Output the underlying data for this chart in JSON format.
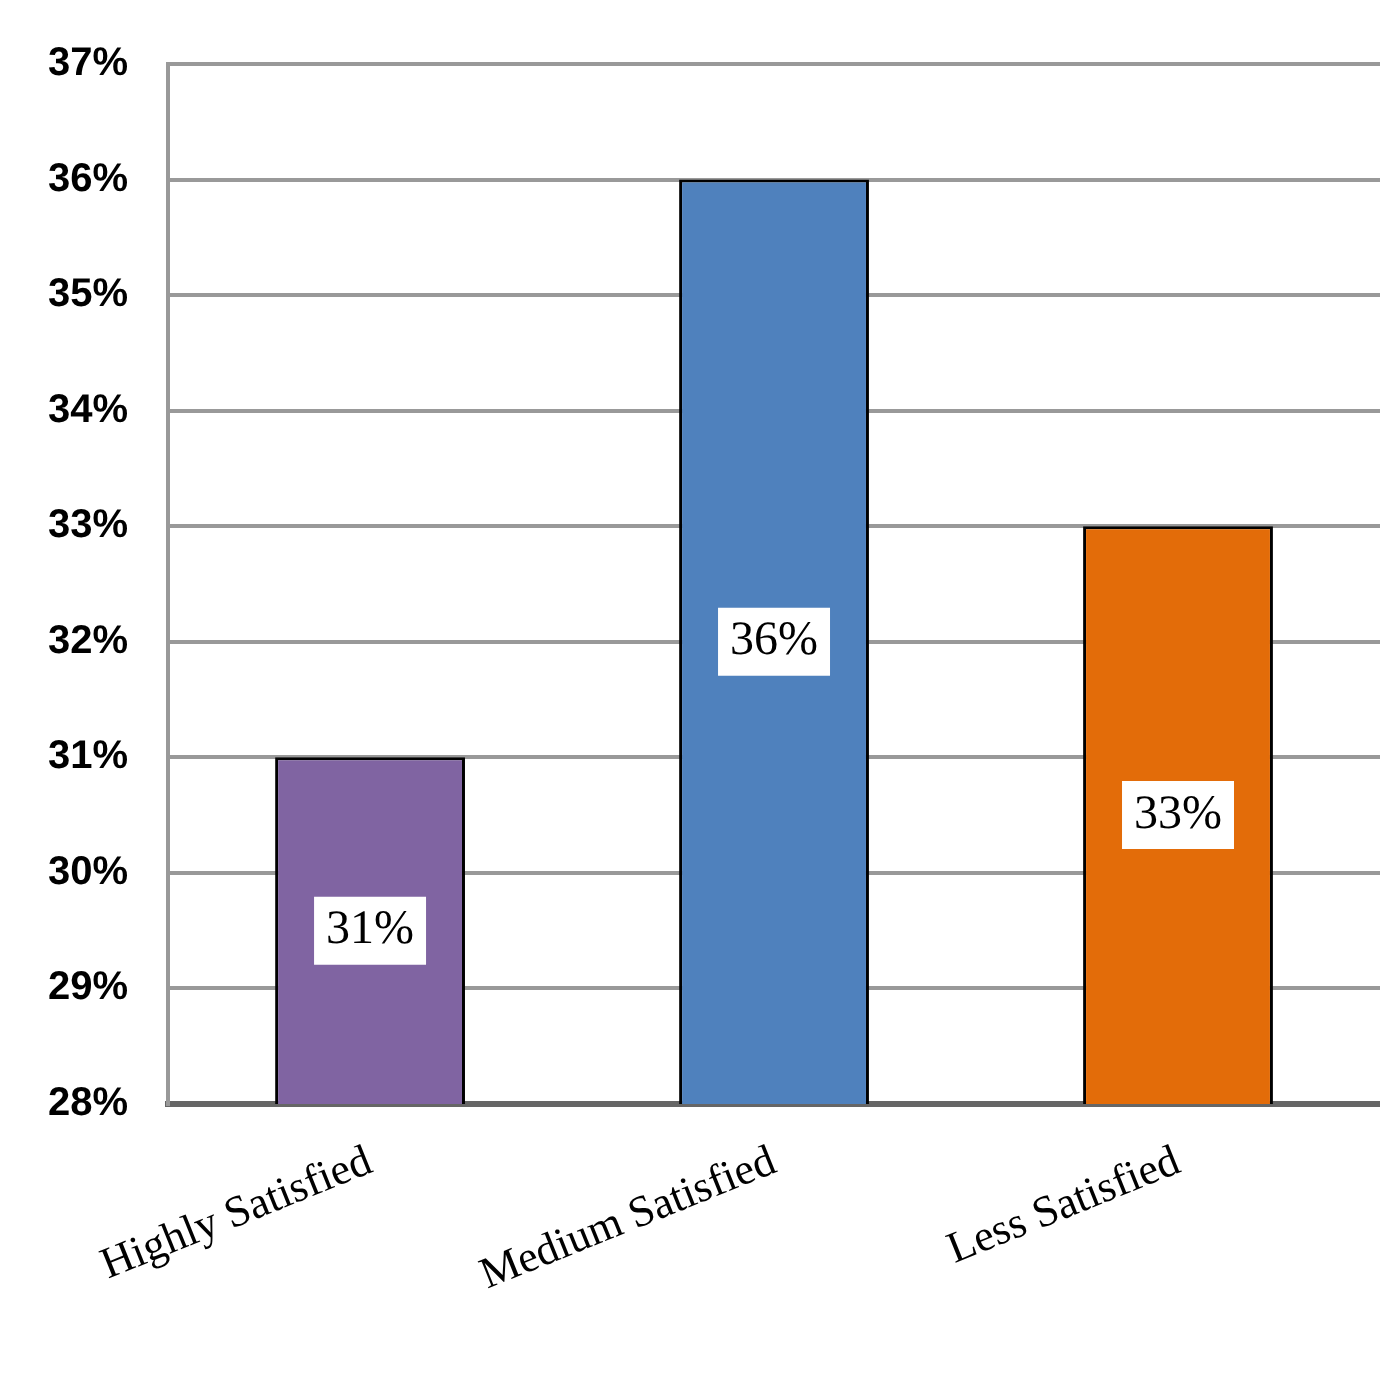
{
  "chart_data": {
    "type": "bar",
    "categories": [
      "Highly Satisfied",
      "Medium Satisfied",
      "Less Satisfied"
    ],
    "values": [
      31,
      36,
      33
    ],
    "colors": [
      "#8064a2",
      "#4f81bd",
      "#e36c09"
    ],
    "value_labels": [
      "31%",
      "36%",
      "33%"
    ],
    "ylim": [
      28,
      37
    ],
    "yticks": [
      {
        "value": 28,
        "label": "28%"
      },
      {
        "value": 29,
        "label": "29%"
      },
      {
        "value": 30,
        "label": "30%"
      },
      {
        "value": 31,
        "label": "31%"
      },
      {
        "value": 32,
        "label": "32%"
      },
      {
        "value": 33,
        "label": "33%"
      },
      {
        "value": 34,
        "label": "34%"
      },
      {
        "value": 35,
        "label": "35%"
      },
      {
        "value": 36,
        "label": "36%"
      },
      {
        "value": 37,
        "label": "37%"
      }
    ],
    "grid": "y",
    "legend": false
  }
}
